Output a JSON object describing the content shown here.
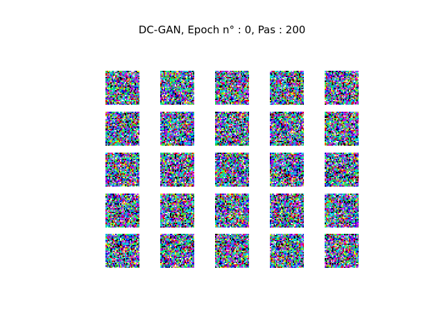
{
  "figure": {
    "title": "DC-GAN, Epoch n° : 0, Pas : 200",
    "grid": {
      "rows": 5,
      "cols": 5,
      "image_resolution": 28
    },
    "palette": [
      "#00ffff",
      "#0000ff",
      "#ff00ff",
      "#00ff80",
      "#ffffff",
      "#000000",
      "#ff0000",
      "#ffff00",
      "#8080ff",
      "#00c0ff",
      "#c000ff",
      "#40ff40"
    ]
  }
}
